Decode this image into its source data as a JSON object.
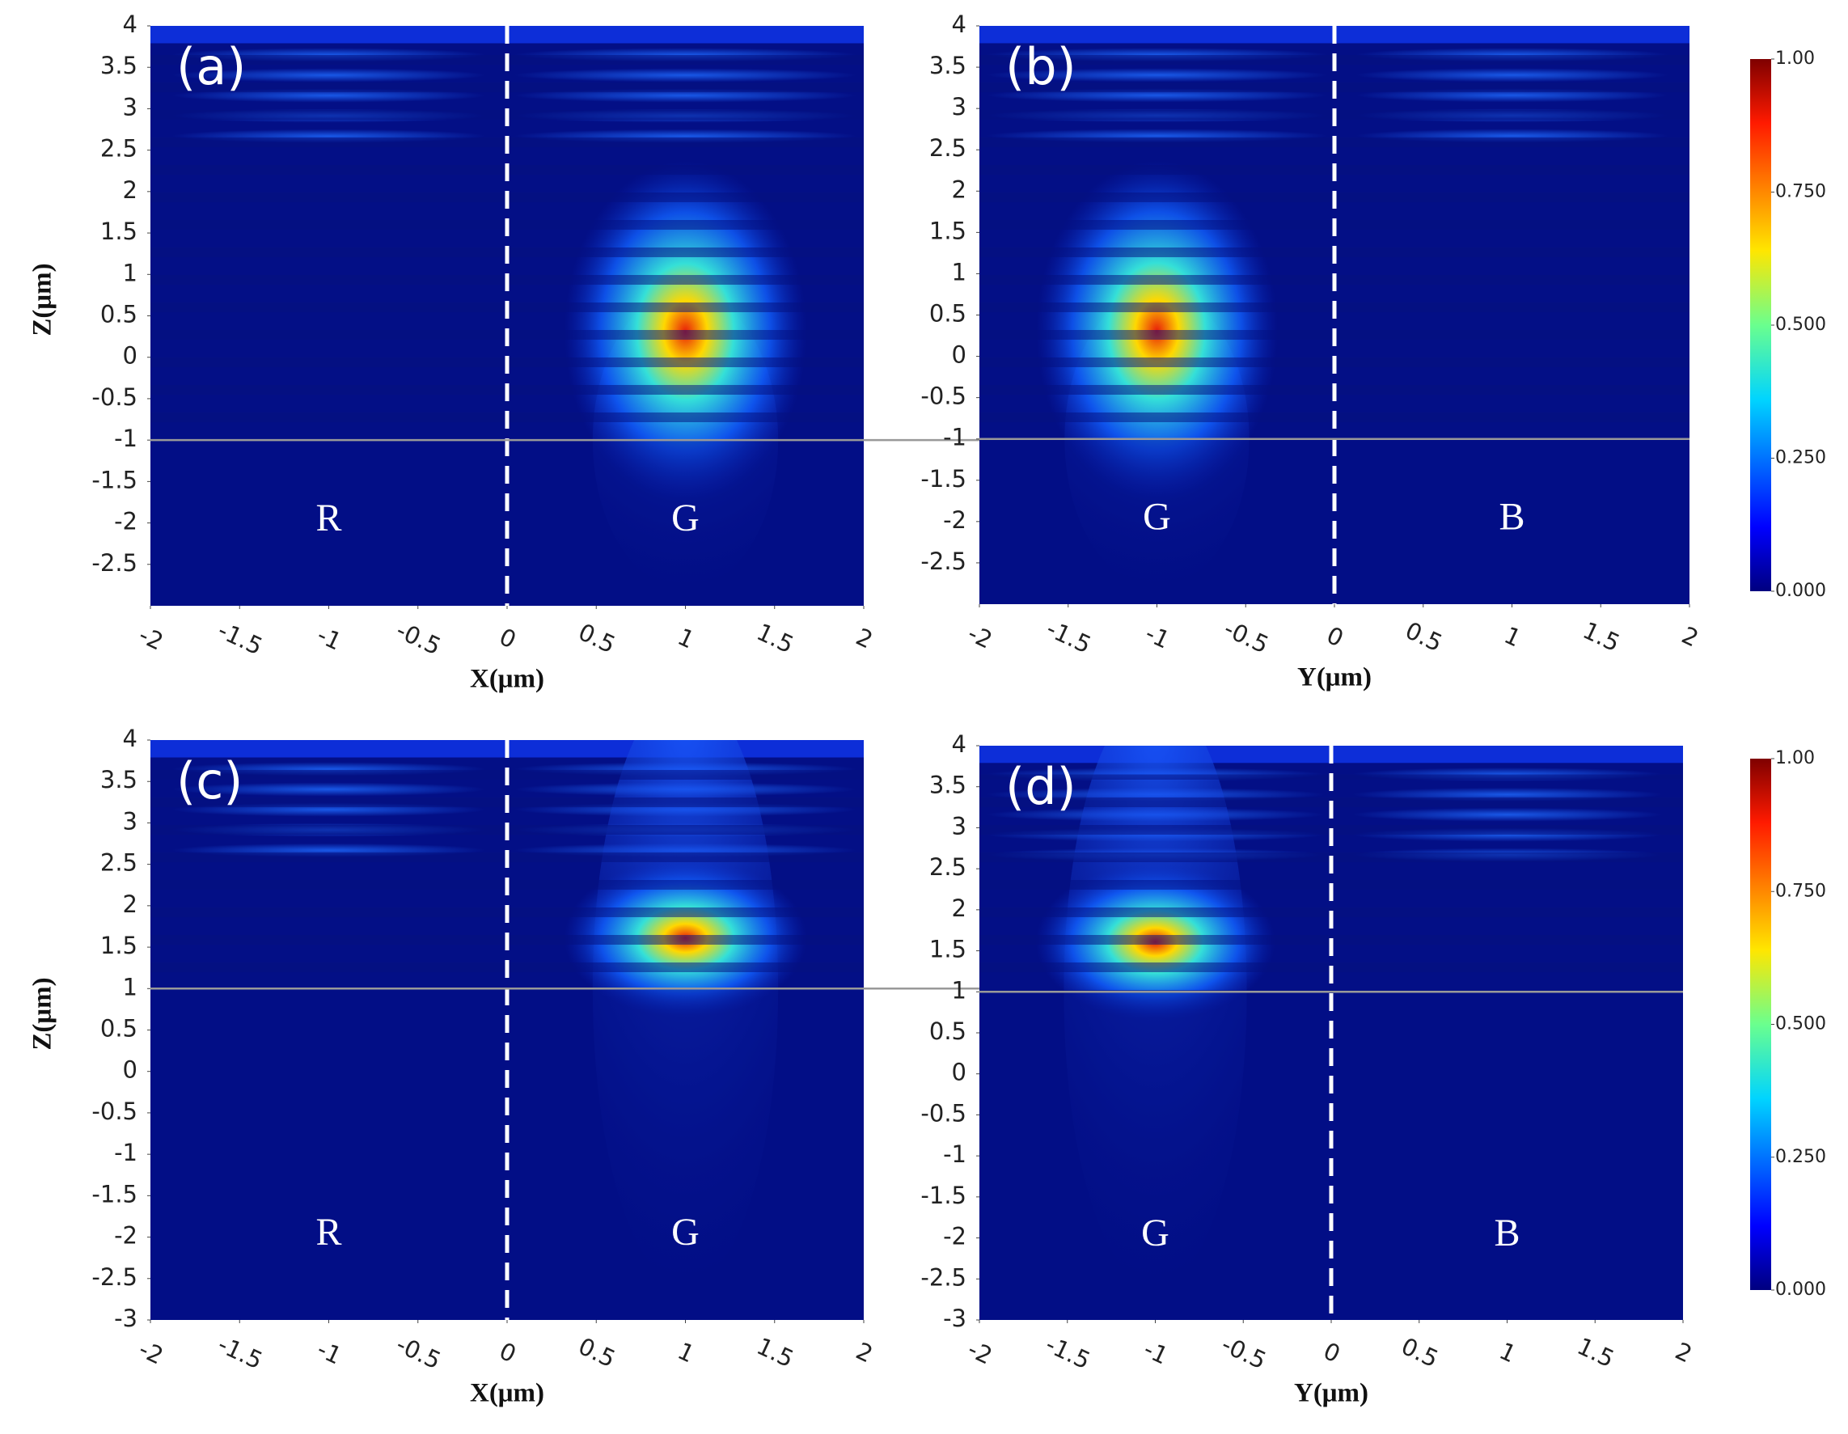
{
  "chart_data": [
    {
      "type": "heatmap",
      "panel_label": "(a)",
      "xlabel": "X(μm)",
      "ylabel": "Z(μm)",
      "regions": [
        "R",
        "G"
      ],
      "interface": -1,
      "xlim": [
        -2,
        2
      ],
      "ylim": [
        -3,
        4
      ],
      "xticks": [
        -2,
        -1.5,
        -1,
        -0.5,
        0,
        0.5,
        1,
        1.5,
        2
      ],
      "yticks": [
        -2.5,
        -2,
        -1.5,
        -1,
        -0.5,
        0,
        0.5,
        1,
        1.5,
        2,
        2.5,
        3,
        3.5,
        4
      ]
    },
    {
      "type": "heatmap",
      "panel_label": "(b)",
      "xlabel": "Y(μm)",
      "regions": [
        "G",
        "B"
      ],
      "interface": -1,
      "xlim": [
        -2,
        2
      ],
      "ylim": [
        -3,
        4
      ],
      "xticks": [
        -2,
        -1.5,
        -1,
        -0.5,
        0,
        0.5,
        1,
        1.5,
        2
      ],
      "yticks": [
        -2.5,
        -2,
        -1.5,
        -1,
        -0.5,
        0,
        0.5,
        1,
        1.5,
        2,
        2.5,
        3,
        3.5,
        4
      ],
      "colorbar": [
        {
          "value": 1,
          "label": "1.00"
        },
        {
          "value": 0.75,
          "label": "0.750"
        },
        {
          "value": 0.5,
          "label": "0.500"
        },
        {
          "value": 0.25,
          "label": "0.250"
        },
        {
          "value": 0,
          "label": "0.000"
        }
      ]
    },
    {
      "type": "heatmap",
      "panel_label": "(c)",
      "xlabel": "X(μm)",
      "ylabel": "Z(μm)",
      "regions": [
        "R",
        "G"
      ],
      "interface": 1,
      "xlim": [
        -2,
        2
      ],
      "ylim": [
        -3,
        4
      ],
      "xticks": [
        -2,
        -1.5,
        -1,
        -0.5,
        0,
        0.5,
        1,
        1.5,
        2
      ],
      "yticks": [
        -3,
        -2.5,
        -2,
        -1.5,
        -1,
        -0.5,
        0,
        0.5,
        1,
        1.5,
        2,
        2.5,
        3,
        3.5,
        4
      ]
    },
    {
      "type": "heatmap",
      "panel_label": "(d)",
      "xlabel": "Y(μm)",
      "regions": [
        "G",
        "B"
      ],
      "interface": 1,
      "xlim": [
        -2,
        2
      ],
      "ylim": [
        -3,
        4
      ],
      "xticks": [
        -2,
        -1.5,
        -1,
        -0.5,
        0,
        0.5,
        1,
        1.5,
        2
      ],
      "yticks": [
        -3,
        -2.5,
        -2,
        -1.5,
        -1,
        -0.5,
        0,
        0.5,
        1,
        1.5,
        2,
        2.5,
        3,
        3.5,
        4
      ],
      "colorbar": [
        {
          "value": 1,
          "label": "1.00"
        },
        {
          "value": 0.75,
          "label": "0.750"
        },
        {
          "value": 0.5,
          "label": "0.500"
        },
        {
          "value": 0.25,
          "label": "0.250"
        },
        {
          "value": 0,
          "label": "0.000"
        }
      ]
    }
  ]
}
